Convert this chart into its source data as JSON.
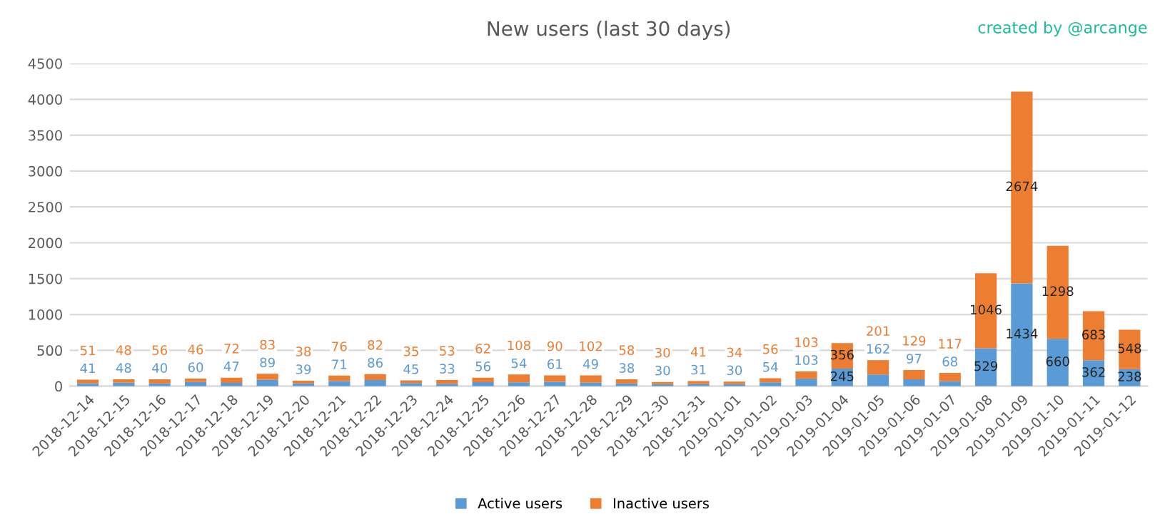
{
  "chart_data": {
    "type": "bar",
    "title": "New users (last 30 days)",
    "annotations": [
      "created by @arcange"
    ],
    "categories": [
      "2018-12-14",
      "2018-12-15",
      "2018-12-16",
      "2018-12-17",
      "2018-12-18",
      "2018-12-19",
      "2018-12-20",
      "2018-12-21",
      "2018-12-22",
      "2018-12-23",
      "2018-12-24",
      "2018-12-25",
      "2018-12-26",
      "2018-12-27",
      "2018-12-28",
      "2018-12-29",
      "2018-12-30",
      "2018-12-31",
      "2019-01-01",
      "2019-01-02",
      "2019-01-03",
      "2019-01-04",
      "2019-01-05",
      "2019-01-06",
      "2019-01-07",
      "2019-01-08",
      "2019-01-09",
      "2019-01-10",
      "2019-01-11",
      "2019-01-12"
    ],
    "stacked": true,
    "data_labels": true,
    "grid": "y",
    "legend": "bottom",
    "ylim": [
      0,
      4500
    ],
    "yticks": [
      0,
      500,
      1000,
      1500,
      2000,
      2500,
      3000,
      3500,
      4000,
      4500
    ],
    "series": [
      {
        "name": "Active users",
        "color": "#5b9bd5",
        "values": [
          41,
          48,
          40,
          60,
          47,
          89,
          39,
          71,
          86,
          45,
          33,
          56,
          54,
          61,
          49,
          38,
          30,
          31,
          30,
          54,
          103,
          245,
          162,
          97,
          68,
          529,
          1434,
          660,
          362,
          238
        ]
      },
      {
        "name": "Inactive users",
        "color": "#ed7d31",
        "values": [
          51,
          48,
          56,
          46,
          72,
          83,
          38,
          76,
          82,
          35,
          53,
          62,
          108,
          90,
          102,
          58,
          30,
          41,
          34,
          56,
          103,
          356,
          201,
          129,
          117,
          1046,
          2674,
          1298,
          683,
          548
        ]
      }
    ]
  }
}
